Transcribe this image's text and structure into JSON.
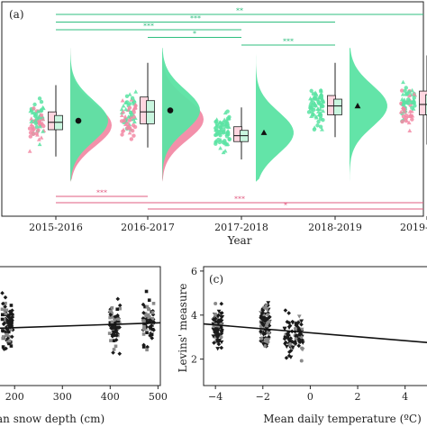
{
  "colors": {
    "green": "#5be3a3",
    "green_stroke": "#2fbf7f",
    "pink": "#f28aa5",
    "pink_stroke": "#e25c82",
    "dark": "#222222",
    "gray": "#9a9a9a"
  },
  "chart_data": [
    {
      "type": "raincloud",
      "panel_label": "(a)",
      "xlabel": "Year",
      "categories": [
        "2015-2016",
        "2016-2017",
        "2017-2018",
        "2018-2019",
        "2019-"
      ],
      "series": [
        {
          "values": [
            0.46,
            0.53,
            0.38,
            0.56,
            0.59
          ]
        },
        {
          "values": [
            0.43,
            0.47,
            null,
            null,
            0.54
          ]
        }
      ],
      "medians": [
        0.45,
        0.52,
        0.36,
        0.56,
        0.57
      ],
      "q1": [
        0.4,
        0.44,
        0.32,
        0.5,
        0.5
      ],
      "q3": [
        0.52,
        0.62,
        0.42,
        0.63,
        0.66
      ],
      "whisker_low": [
        0.22,
        0.28,
        0.2,
        0.35,
        0.3
      ],
      "whisker_high": [
        0.7,
        0.85,
        0.55,
        0.85,
        0.9
      ],
      "significance_top": [
        {
          "from": 0,
          "to": 4,
          "label": "**"
        },
        {
          "from": 0,
          "to": 3,
          "label": "***"
        },
        {
          "from": 0,
          "to": 2,
          "label": "***"
        },
        {
          "from": 1,
          "to": 2,
          "label": "*"
        },
        {
          "from": 2,
          "to": 3,
          "label": "***"
        }
      ],
      "significance_bottom": [
        {
          "from": 0,
          "to": 1,
          "label": "***"
        },
        {
          "from": 0,
          "to": 4,
          "label": "***"
        },
        {
          "from": 1,
          "to": 4,
          "label": "*"
        }
      ]
    },
    {
      "type": "scatter",
      "panel_label": "",
      "xlabel": "an snow depth (cm)",
      "ylabel": "",
      "xticks": [
        200,
        300,
        400,
        500
      ],
      "xlim": [
        160,
        505
      ],
      "ylim": [
        0.8,
        6.2
      ],
      "clusters_x": [
        185,
        410,
        480
      ],
      "trend": {
        "x": [
          160,
          505
        ],
        "y": [
          3.4,
          3.65
        ]
      }
    },
    {
      "type": "scatter",
      "panel_label": "(c)",
      "xlabel": "Mean daily temperature (ºC)",
      "ylabel": "Levins' measure",
      "xticks": [
        -4,
        -2,
        0,
        2,
        4
      ],
      "yticks": [
        2,
        4,
        6
      ],
      "xlim": [
        -4.5,
        5.0
      ],
      "ylim": [
        0.8,
        6.2
      ],
      "clusters_x": [
        -3.9,
        -1.9,
        -0.9,
        -0.5
      ],
      "trend": {
        "x": [
          -4.5,
          5.0
        ],
        "y": [
          3.6,
          2.75
        ]
      }
    }
  ]
}
